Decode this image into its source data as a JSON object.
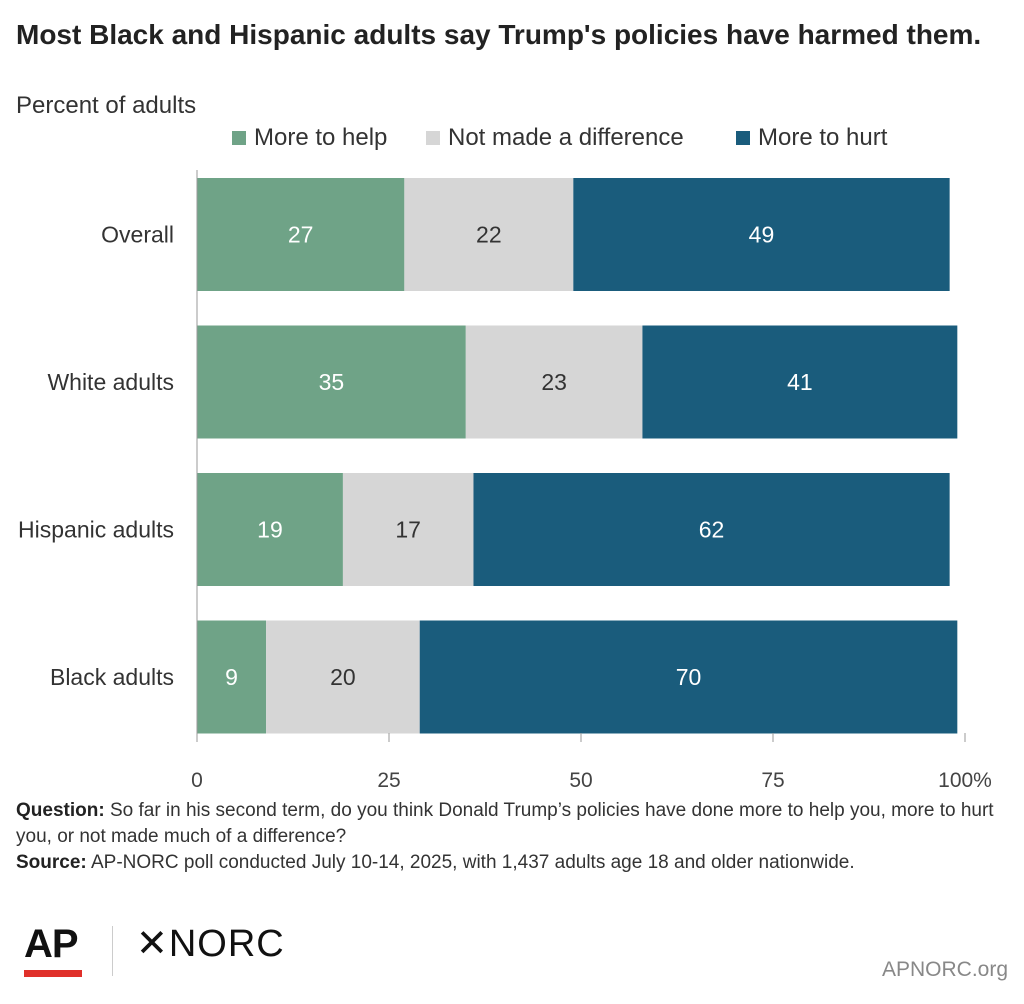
{
  "title": "Most Black and Hispanic adults say Trump's policies have harmed them.",
  "subtitle": "Percent of adults",
  "colors": {
    "help": "#6fa387",
    "no_difference": "#d6d6d6",
    "hurt": "#1a5c7c",
    "axis": "#999999"
  },
  "chart_data": {
    "type": "bar",
    "orientation": "horizontal",
    "stacked": true,
    "categories": [
      "Overall",
      "White adults",
      "Hispanic adults",
      "Black adults"
    ],
    "series": [
      {
        "name": "More to help",
        "values": [
          27,
          35,
          19,
          9
        ]
      },
      {
        "name": "Not made a difference",
        "values": [
          22,
          23,
          17,
          20
        ]
      },
      {
        "name": "More to hurt",
        "values": [
          49,
          41,
          62,
          70
        ]
      }
    ],
    "xlim": [
      0,
      100
    ],
    "x_ticks": [
      "0",
      "25",
      "50",
      "75",
      "100%"
    ],
    "legend_position": "top",
    "grid": false
  },
  "notes": {
    "question_label": "Question:",
    "question_text": "So far in his second term, do you think Donald Trump’s policies have done more to help you, more to hurt you, or not made much of a difference?",
    "source_label": "Source:",
    "source_text": "AP-NORC poll conducted July 10-14, 2025, with 1,437 adults age 18 and older nationwide."
  },
  "logos": {
    "ap": "AP",
    "norc_symbol": "✕",
    "norc": "NORC"
  },
  "site": "APNORC.org"
}
